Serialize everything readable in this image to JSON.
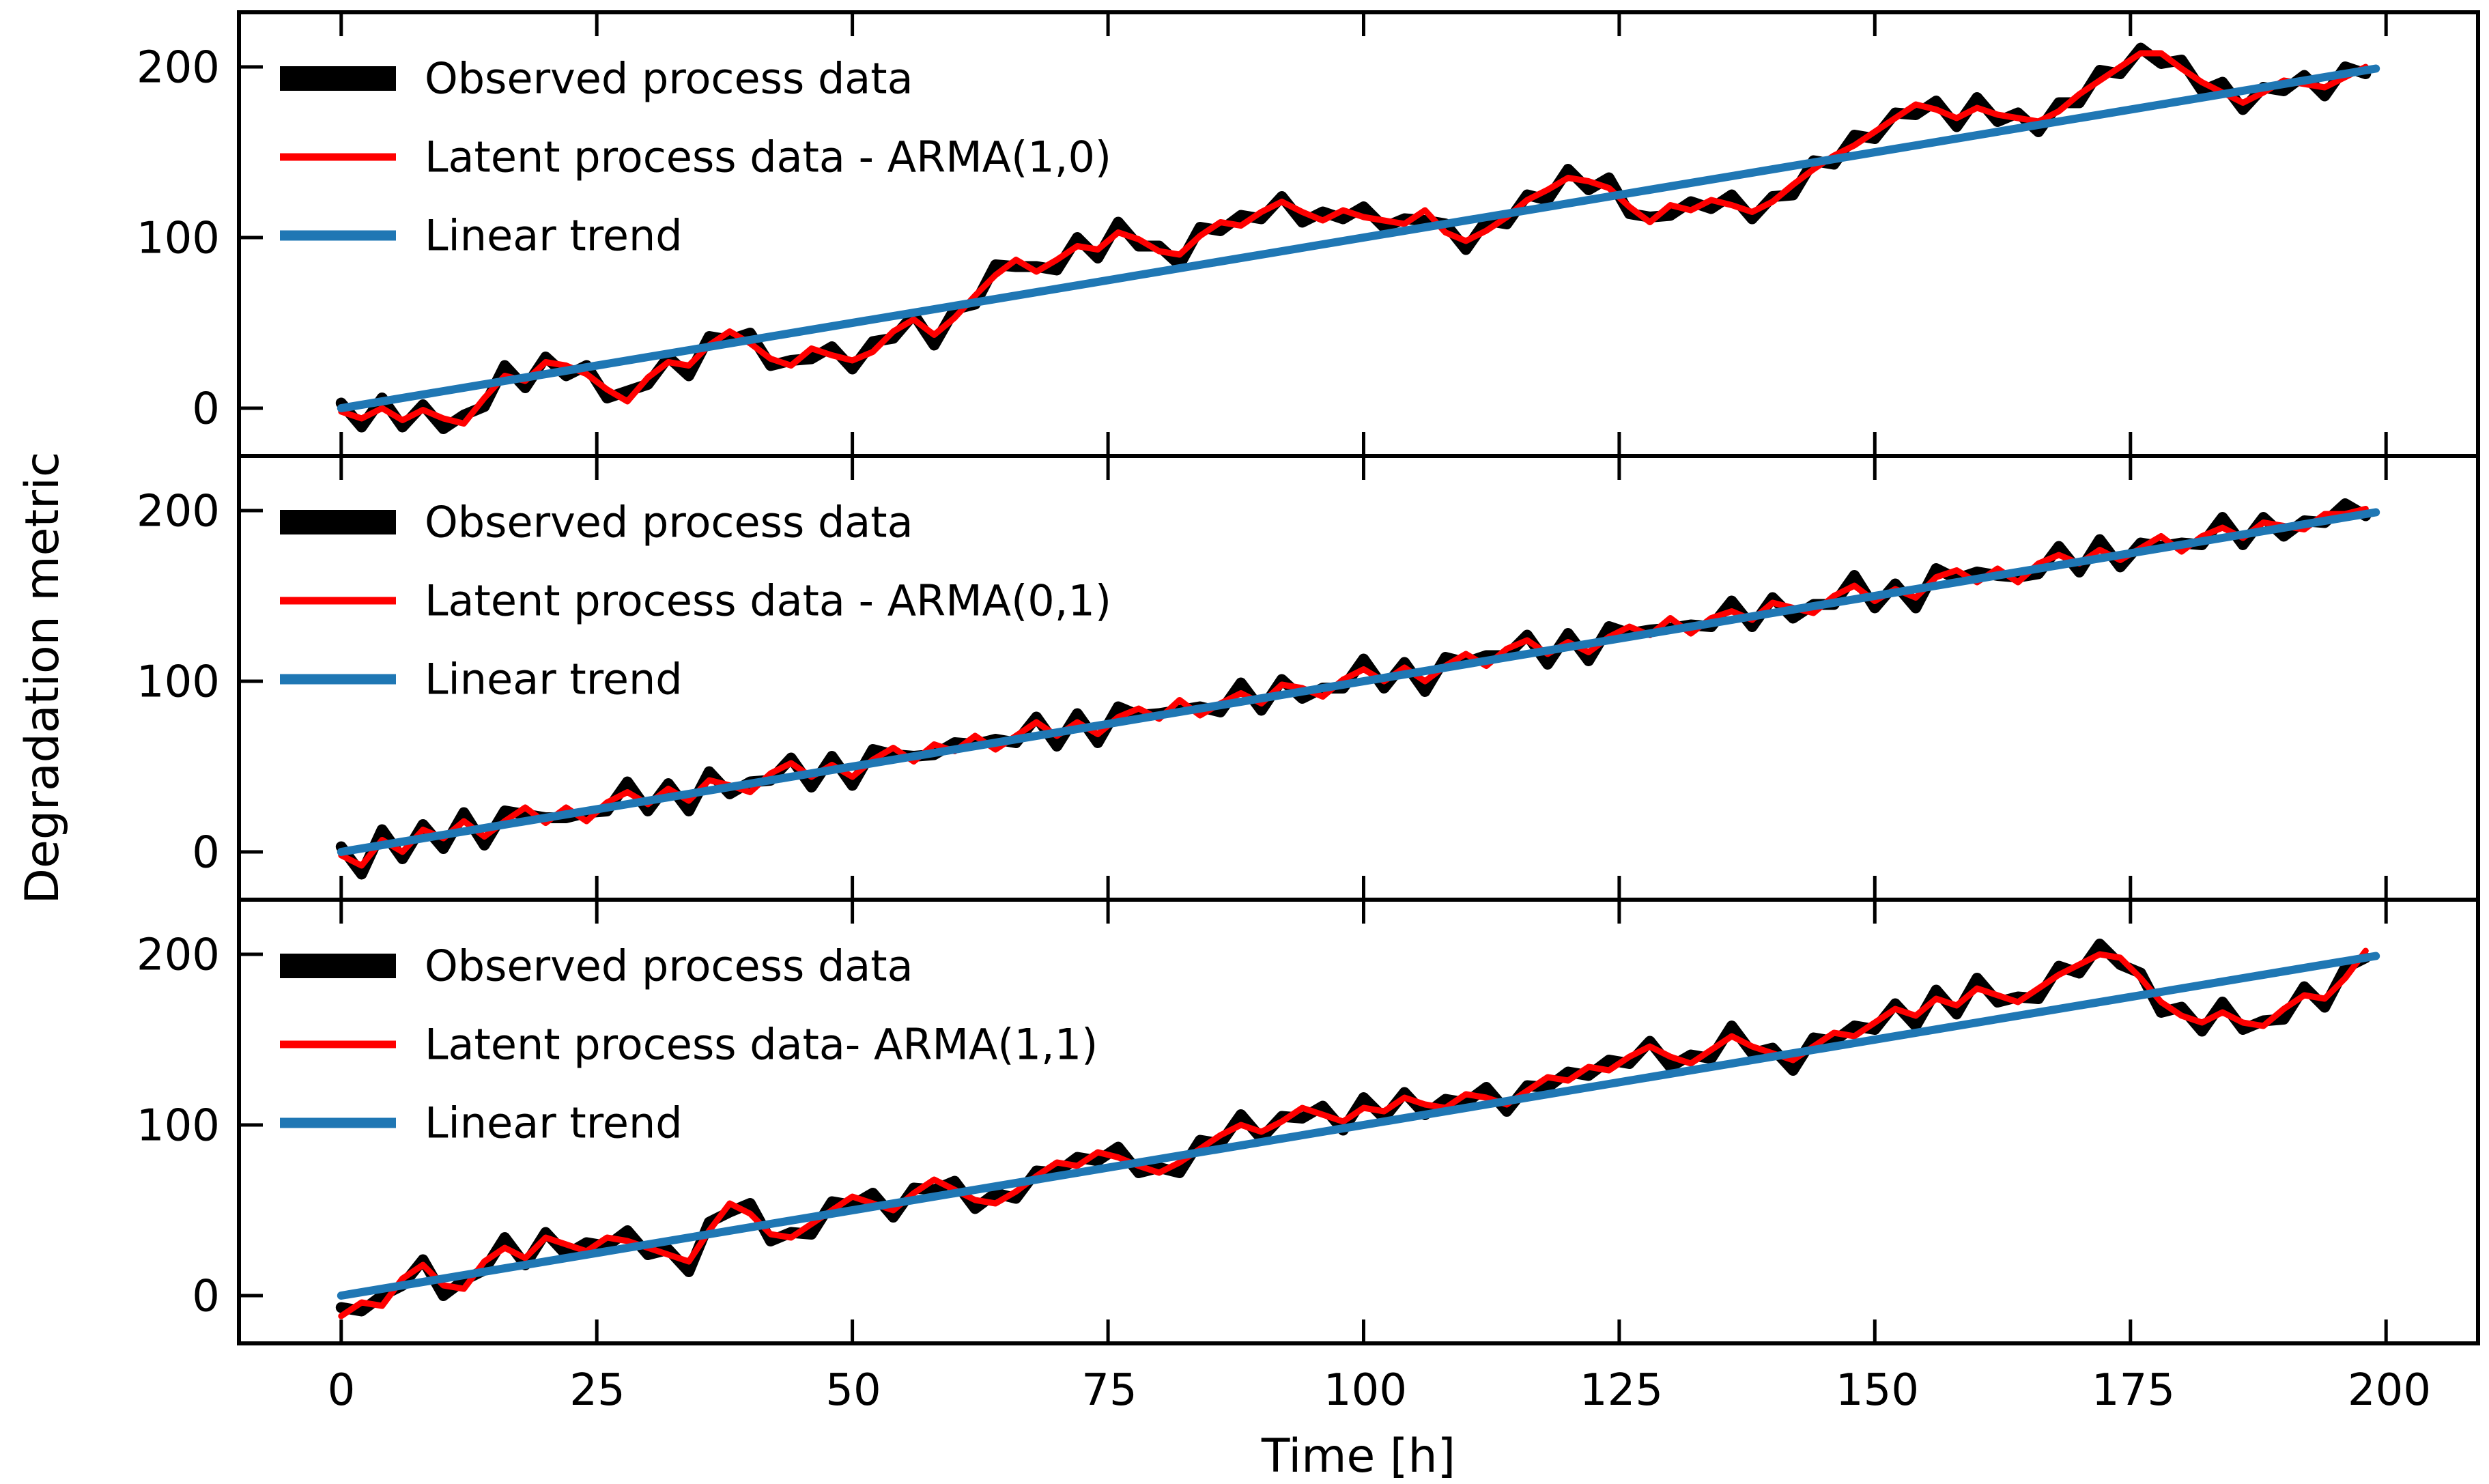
{
  "figure": {
    "background": "#ffffff",
    "text_color": "#000000"
  },
  "chart_data": {
    "type": "line",
    "layout": "3 vertically stacked subplots with shared x axis, no grid, legends upper-left inside axes",
    "xlabel": "Time [h]",
    "ylabel": "Degradation metric",
    "xlim": [
      -10,
      209
    ],
    "ylim": [
      -28,
      232
    ],
    "xticks": [
      0,
      25,
      50,
      75,
      100,
      125,
      150,
      175,
      200
    ],
    "yticks": [
      0,
      100,
      200
    ],
    "grid": false,
    "colors": {
      "observed": "#000000",
      "latent": "#ff0000",
      "trend": "#1f77b4"
    },
    "x_values": [
      0,
      2,
      4,
      6,
      8,
      10,
      12,
      14,
      16,
      18,
      20,
      22,
      24,
      26,
      28,
      30,
      32,
      34,
      36,
      38,
      40,
      42,
      44,
      46,
      48,
      50,
      52,
      54,
      56,
      58,
      60,
      62,
      64,
      66,
      68,
      70,
      72,
      74,
      76,
      78,
      80,
      82,
      84,
      86,
      88,
      90,
      92,
      94,
      96,
      98,
      100,
      102,
      104,
      106,
      108,
      110,
      112,
      114,
      116,
      118,
      120,
      122,
      124,
      126,
      128,
      130,
      132,
      134,
      136,
      138,
      140,
      142,
      144,
      146,
      148,
      150,
      152,
      154,
      156,
      158,
      160,
      162,
      164,
      166,
      168,
      170,
      172,
      174,
      176,
      178,
      180,
      182,
      184,
      186,
      188,
      190,
      192,
      194,
      196,
      198
    ],
    "subplots": [
      {
        "id": "arma-1-0",
        "series": [
          {
            "name": "Observed process data",
            "color": "#000000",
            "linewidth": 16,
            "y": [
              3,
              -11,
              6,
              -11,
              2,
              -12,
              -4,
              1,
              25,
              12,
              30,
              19,
              25,
              6,
              10,
              14,
              30,
              19,
              42,
              40,
              44,
              25,
              28,
              29,
              36,
              23,
              39,
              41,
              55,
              37,
              58,
              61,
              84,
              83,
              83,
              81,
              100,
              88,
              109,
              95,
              95,
              84,
              106,
              104,
              113,
              111,
              124,
              109,
              115,
              111,
              118,
              106,
              111,
              110,
              108,
              93,
              110,
              108,
              125,
              122,
              140,
              128,
              135,
              114,
              112,
              113,
              121,
              117,
              125,
              111,
              124,
              125,
              145,
              143,
              160,
              158,
              173,
              172,
              180,
              165,
              182,
              168,
              173,
              162,
              179,
              179,
              198,
              196,
              211,
              202,
              204,
              186,
              191,
              175,
              188,
              186,
              195,
              183,
              200,
              196
            ]
          },
          {
            "name": "Latent process data - ARMA(1,0)",
            "color": "#ff0000",
            "linewidth": 9,
            "y": [
              -2,
              -6,
              0,
              -7,
              -1,
              -6,
              -9,
              6,
              19,
              16,
              27,
              25,
              20,
              11,
              4,
              18,
              27,
              25,
              37,
              45,
              38,
              29,
              25,
              35,
              31,
              28,
              33,
              45,
              52,
              43,
              53,
              66,
              78,
              87,
              80,
              87,
              95,
              93,
              103,
              99,
              92,
              90,
              101,
              109,
              107,
              115,
              121,
              115,
              110,
              116,
              112,
              110,
              108,
              116,
              103,
              98,
              104,
              112,
              122,
              128,
              135,
              133,
              129,
              118,
              109,
              119,
              116,
              122,
              119,
              115,
              121,
              131,
              140,
              148,
              154,
              162,
              170,
              178,
              175,
              170,
              176,
              172,
              170,
              168,
              174,
              184,
              192,
              200,
              208,
              208,
              199,
              191,
              185,
              179,
              185,
              192,
              190,
              188,
              194,
              200
            ]
          },
          {
            "name": "Linear trend",
            "color": "#1f77b4",
            "linewidth": 12,
            "x": [
              0,
              199
            ],
            "y": [
              0,
              199
            ]
          }
        ]
      },
      {
        "id": "arma-0-1",
        "series": [
          {
            "name": "Observed process data",
            "color": "#000000",
            "linewidth": 16,
            "y": [
              3,
              -13,
              13,
              -4,
              16,
              2,
              23,
              4,
              24,
              22,
              20,
              20,
              23,
              24,
              41,
              24,
              40,
              24,
              47,
              34,
              41,
              42,
              55,
              38,
              56,
              39,
              60,
              57,
              56,
              57,
              64,
              63,
              66,
              64,
              79,
              62,
              81,
              64,
              85,
              80,
              81,
              83,
              85,
              82,
              99,
              83,
              101,
              90,
              96,
              96,
              113,
              96,
              111,
              94,
              114,
              111,
              115,
              115,
              127,
              110,
              128,
              112,
              132,
              128,
              130,
              131,
              133,
              132,
              147,
              132,
              149,
              137,
              145,
              145,
              162,
              143,
              157,
              143,
              166,
              160,
              164,
              162,
              161,
              163,
              179,
              164,
              183,
              167,
              181,
              179,
              181,
              180,
              196,
              180,
              196,
              185,
              194,
              193,
              204,
              197
            ]
          },
          {
            "name": "Latent process data - ARMA(0,1)",
            "color": "#ff0000",
            "linewidth": 9,
            "y": [
              -2,
              -8,
              7,
              0,
              13,
              8,
              18,
              9,
              18,
              26,
              17,
              26,
              18,
              29,
              35,
              28,
              37,
              30,
              42,
              39,
              35,
              46,
              52,
              44,
              51,
              44,
              54,
              61,
              53,
              63,
              59,
              68,
              60,
              68,
              76,
              68,
              76,
              69,
              79,
              84,
              78,
              89,
              80,
              87,
              93,
              87,
              98,
              96,
              91,
              101,
              107,
              100,
              108,
              100,
              109,
              116,
              109,
              119,
              124,
              116,
              123,
              117,
              126,
              132,
              127,
              137,
              128,
              137,
              141,
              136,
              146,
              143,
              140,
              150,
              156,
              147,
              154,
              149,
              161,
              165,
              158,
              166,
              158,
              169,
              174,
              169,
              177,
              171,
              178,
              185,
              176,
              185,
              190,
              184,
              193,
              191,
              189,
              198,
              198,
              201
            ]
          },
          {
            "name": "Linear trend",
            "color": "#1f77b4",
            "linewidth": 12,
            "x": [
              0,
              199
            ],
            "y": [
              0,
              199
            ]
          }
        ]
      },
      {
        "id": "arma-1-1",
        "series": [
          {
            "name": "Observed process data",
            "color": "#000000",
            "linewidth": 16,
            "y": [
              -7,
              -9,
              0,
              6,
              21,
              0,
              9,
              15,
              34,
              18,
              37,
              24,
              31,
              29,
              38,
              24,
              27,
              14,
              43,
              49,
              54,
              32,
              37,
              36,
              55,
              53,
              60,
              46,
              63,
              62,
              67,
              51,
              60,
              57,
              73,
              72,
              81,
              79,
              87,
              72,
              75,
              72,
              91,
              89,
              106,
              92,
              105,
              104,
              111,
              97,
              116,
              104,
              119,
              106,
              115,
              113,
              122,
              108,
              123,
              122,
              131,
              129,
              138,
              136,
              149,
              134,
              141,
              139,
              158,
              142,
              145,
              132,
              151,
              149,
              158,
              156,
              171,
              158,
              179,
              165,
              186,
              172,
              175,
              174,
              193,
              189,
              206,
              194,
              189,
              166,
              169,
              155,
              172,
              156,
              161,
              162,
              181,
              169,
              192,
              198
            ]
          },
          {
            "name": "Latent process data- ARMA(1,1)",
            "color": "#ff0000",
            "linewidth": 9,
            "y": [
              -12,
              -4,
              -6,
              10,
              18,
              6,
              4,
              20,
              28,
              22,
              34,
              30,
              26,
              34,
              32,
              28,
              24,
              20,
              38,
              54,
              48,
              36,
              34,
              42,
              50,
              58,
              54,
              50,
              60,
              68,
              62,
              56,
              54,
              61,
              70,
              78,
              76,
              84,
              81,
              76,
              72,
              78,
              86,
              94,
              100,
              96,
              102,
              110,
              106,
              102,
              110,
              108,
              116,
              112,
              110,
              118,
              116,
              112,
              120,
              128,
              126,
              134,
              132,
              140,
              146,
              140,
              136,
              144,
              152,
              146,
              142,
              138,
              146,
              154,
              152,
              160,
              168,
              164,
              174,
              170,
              180,
              176,
              172,
              180,
              188,
              194,
              200,
              198,
              186,
              172,
              164,
              160,
              166,
              160,
              158,
              168,
              176,
              174,
              186,
              202
            ]
          },
          {
            "name": "Linear trend",
            "color": "#1f77b4",
            "linewidth": 12,
            "x": [
              0,
              199
            ],
            "y": [
              0,
              199
            ]
          }
        ]
      }
    ]
  }
}
